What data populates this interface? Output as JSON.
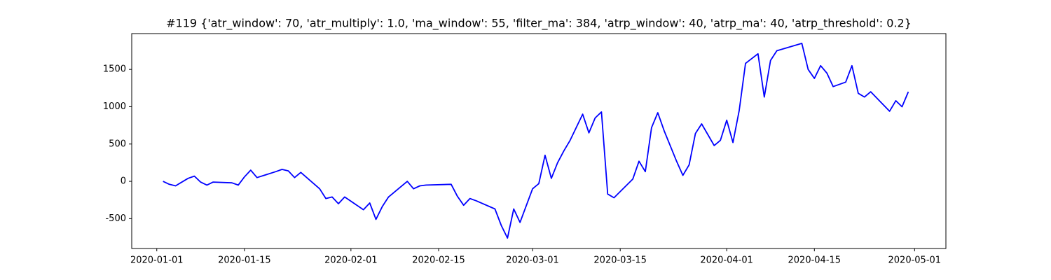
{
  "chart_data": {
    "type": "line",
    "title": "#119 {'atr_window': 70, 'atr_multiply': 1.0, 'ma_window': 55, 'filter_ma': 384, 'atrp_window': 40, 'atrp_ma': 40, 'atrp_threshold': 0.2}",
    "x": [
      "2020-01-02",
      "2020-01-03",
      "2020-01-04",
      "2020-01-06",
      "2020-01-07",
      "2020-01-08",
      "2020-01-09",
      "2020-01-10",
      "2020-01-13",
      "2020-01-14",
      "2020-01-15",
      "2020-01-16",
      "2020-01-17",
      "2020-01-20",
      "2020-01-21",
      "2020-01-22",
      "2020-01-23",
      "2020-01-24",
      "2020-01-27",
      "2020-01-28",
      "2020-01-29",
      "2020-01-30",
      "2020-01-31",
      "2020-02-03",
      "2020-02-04",
      "2020-02-05",
      "2020-02-06",
      "2020-02-07",
      "2020-02-10",
      "2020-02-11",
      "2020-02-12",
      "2020-02-13",
      "2020-02-17",
      "2020-02-18",
      "2020-02-19",
      "2020-02-20",
      "2020-02-21",
      "2020-02-24",
      "2020-02-25",
      "2020-02-26",
      "2020-02-27",
      "2020-02-28",
      "2020-03-01",
      "2020-03-02",
      "2020-03-03",
      "2020-03-04",
      "2020-03-05",
      "2020-03-06",
      "2020-03-07",
      "2020-03-09",
      "2020-03-10",
      "2020-03-11",
      "2020-03-12",
      "2020-03-13",
      "2020-03-14",
      "2020-03-17",
      "2020-03-18",
      "2020-03-19",
      "2020-03-20",
      "2020-03-21",
      "2020-03-22",
      "2020-03-24",
      "2020-03-25",
      "2020-03-26",
      "2020-03-27",
      "2020-03-28",
      "2020-03-30",
      "2020-03-31",
      "2020-04-01",
      "2020-04-02",
      "2020-04-03",
      "2020-04-04",
      "2020-04-06",
      "2020-04-07",
      "2020-04-08",
      "2020-04-09",
      "2020-04-13",
      "2020-04-14",
      "2020-04-15",
      "2020-04-16",
      "2020-04-17",
      "2020-04-18",
      "2020-04-20",
      "2020-04-21",
      "2020-04-22",
      "2020-04-23",
      "2020-04-24",
      "2020-04-27",
      "2020-04-28",
      "2020-04-29",
      "2020-04-30"
    ],
    "values": [
      0,
      -40,
      -60,
      40,
      70,
      -10,
      -50,
      -10,
      -20,
      -50,
      60,
      150,
      50,
      130,
      160,
      140,
      50,
      120,
      -100,
      -230,
      -210,
      -300,
      -210,
      -380,
      -290,
      -510,
      -340,
      -210,
      0,
      -100,
      -60,
      -50,
      -40,
      -200,
      -320,
      -230,
      -260,
      -370,
      -590,
      -760,
      -370,
      -550,
      -100,
      -30,
      350,
      40,
      250,
      410,
      550,
      900,
      650,
      850,
      930,
      -170,
      -220,
      30,
      270,
      130,
      720,
      920,
      680,
      270,
      80,
      220,
      640,
      770,
      480,
      550,
      820,
      520,
      950,
      1580,
      1710,
      1130,
      1620,
      1750,
      1850,
      1500,
      1380,
      1550,
      1450,
      1270,
      1330,
      1550,
      1180,
      1130,
      1200,
      940,
      1080,
      1000,
      1200
    ],
    "color": "blue",
    "xlim": [
      "2019-12-28",
      "2020-05-06"
    ],
    "xticks": [
      "2020-01-01",
      "2020-01-15",
      "2020-02-01",
      "2020-02-15",
      "2020-03-01",
      "2020-03-15",
      "2020-04-01",
      "2020-04-15",
      "2020-05-01"
    ],
    "ylim": [
      -900,
      1980
    ],
    "yticks": [
      -500,
      0,
      500,
      1000,
      1500
    ]
  }
}
